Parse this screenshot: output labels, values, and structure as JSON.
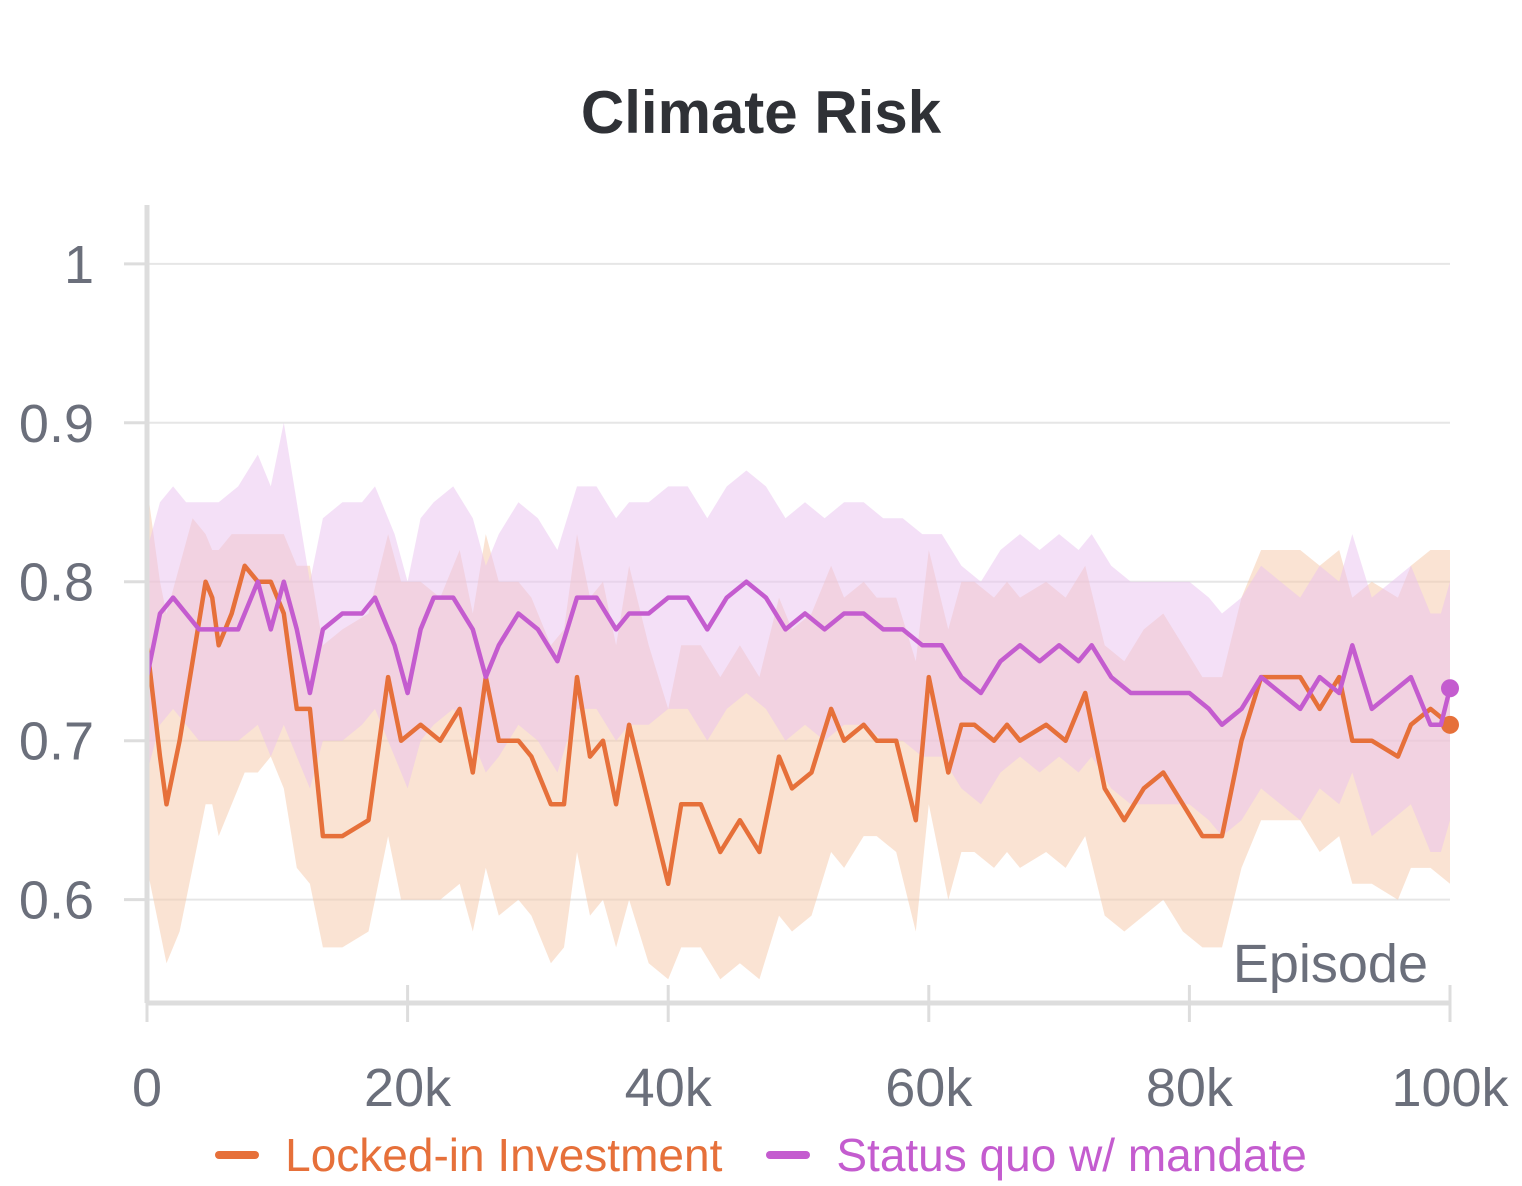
{
  "chart_data": {
    "type": "line",
    "title": "Climate Risk",
    "xlabel": "Episode",
    "ylabel": "",
    "xlim": [
      0,
      100000
    ],
    "ylim": [
      0.535,
      1.037
    ],
    "x_ticks": [
      0,
      20000,
      40000,
      60000,
      80000,
      100000
    ],
    "x_tick_labels": [
      "0",
      "20k",
      "40k",
      "60k",
      "80k",
      "100k"
    ],
    "y_ticks": [
      0.6,
      0.7,
      0.8,
      0.9,
      1
    ],
    "y_tick_labels": [
      "0.6",
      "0.7",
      "0.8",
      "0.9",
      "1"
    ],
    "grid": true,
    "legend_position": "bottom",
    "series": [
      {
        "name": "Locked-in Investment",
        "color": "#e6703a",
        "band_color": "#f6c7a8",
        "x": [
          0,
          1000,
          1500,
          2500,
          3500,
          4500,
          5000,
          5500,
          6500,
          7500,
          8500,
          9500,
          10500,
          11500,
          12500,
          13500,
          15000,
          17000,
          18500,
          19500,
          21000,
          22500,
          24000,
          25000,
          26000,
          27000,
          28500,
          29500,
          31000,
          32000,
          33000,
          34000,
          35000,
          36000,
          37000,
          38500,
          40000,
          41000,
          42500,
          44000,
          45500,
          47000,
          48500,
          49500,
          51000,
          52500,
          53500,
          55000,
          56000,
          57500,
          59000,
          60000,
          61500,
          62500,
          63500,
          65000,
          66000,
          67000,
          69000,
          70500,
          72000,
          73500,
          75000,
          76500,
          78000,
          79500,
          81000,
          82500,
          84000,
          85500,
          87000,
          88500,
          90000,
          91500,
          92500,
          94000,
          96000,
          97000,
          98500,
          100000
        ],
        "y": [
          0.76,
          0.69,
          0.66,
          0.7,
          0.75,
          0.8,
          0.79,
          0.76,
          0.78,
          0.81,
          0.8,
          0.8,
          0.78,
          0.72,
          0.72,
          0.64,
          0.64,
          0.65,
          0.74,
          0.7,
          0.71,
          0.7,
          0.72,
          0.68,
          0.74,
          0.7,
          0.7,
          0.69,
          0.66,
          0.66,
          0.74,
          0.69,
          0.7,
          0.66,
          0.71,
          0.66,
          0.61,
          0.66,
          0.66,
          0.63,
          0.65,
          0.63,
          0.69,
          0.67,
          0.68,
          0.72,
          0.7,
          0.71,
          0.7,
          0.7,
          0.65,
          0.74,
          0.68,
          0.71,
          0.71,
          0.7,
          0.71,
          0.7,
          0.71,
          0.7,
          0.73,
          0.67,
          0.65,
          0.67,
          0.68,
          0.66,
          0.64,
          0.64,
          0.7,
          0.74,
          0.74,
          0.74,
          0.72,
          0.74,
          0.7,
          0.7,
          0.69,
          0.71,
          0.72,
          0.71
        ],
        "y_low": [
          0.62,
          0.58,
          0.56,
          0.58,
          0.62,
          0.66,
          0.66,
          0.64,
          0.66,
          0.68,
          0.68,
          0.69,
          0.67,
          0.62,
          0.61,
          0.57,
          0.57,
          0.58,
          0.64,
          0.6,
          0.6,
          0.6,
          0.61,
          0.58,
          0.62,
          0.59,
          0.6,
          0.59,
          0.56,
          0.57,
          0.63,
          0.59,
          0.6,
          0.57,
          0.6,
          0.56,
          0.55,
          0.57,
          0.57,
          0.55,
          0.56,
          0.55,
          0.59,
          0.58,
          0.59,
          0.63,
          0.62,
          0.64,
          0.64,
          0.63,
          0.58,
          0.66,
          0.6,
          0.63,
          0.63,
          0.62,
          0.63,
          0.62,
          0.63,
          0.62,
          0.64,
          0.59,
          0.58,
          0.59,
          0.6,
          0.58,
          0.57,
          0.57,
          0.62,
          0.65,
          0.65,
          0.65,
          0.63,
          0.64,
          0.61,
          0.61,
          0.6,
          0.62,
          0.62,
          0.61
        ],
        "y_high": [
          0.86,
          0.8,
          0.78,
          0.81,
          0.84,
          0.83,
          0.82,
          0.82,
          0.83,
          0.83,
          0.83,
          0.83,
          0.83,
          0.81,
          0.81,
          0.76,
          0.77,
          0.78,
          0.83,
          0.8,
          0.8,
          0.79,
          0.82,
          0.78,
          0.83,
          0.8,
          0.8,
          0.79,
          0.76,
          0.77,
          0.83,
          0.79,
          0.8,
          0.76,
          0.81,
          0.76,
          0.72,
          0.76,
          0.76,
          0.74,
          0.76,
          0.74,
          0.79,
          0.77,
          0.78,
          0.81,
          0.79,
          0.8,
          0.79,
          0.79,
          0.75,
          0.82,
          0.77,
          0.8,
          0.8,
          0.79,
          0.8,
          0.79,
          0.8,
          0.79,
          0.81,
          0.76,
          0.75,
          0.77,
          0.78,
          0.76,
          0.74,
          0.74,
          0.79,
          0.82,
          0.82,
          0.82,
          0.81,
          0.82,
          0.79,
          0.8,
          0.79,
          0.81,
          0.82,
          0.82
        ]
      },
      {
        "name": "Status quo w/ mandate",
        "color": "#c45ccf",
        "band_color": "#e9c2ef",
        "x": [
          0,
          1000,
          2000,
          3000,
          4000,
          5500,
          7000,
          8500,
          9500,
          10500,
          11500,
          12500,
          13500,
          15000,
          16500,
          17500,
          19000,
          20000,
          21000,
          22000,
          23500,
          25000,
          26000,
          27000,
          28500,
          30000,
          31500,
          33000,
          34500,
          36000,
          37000,
          38500,
          40000,
          41500,
          43000,
          44500,
          46000,
          47500,
          49000,
          50500,
          52000,
          53500,
          55000,
          56500,
          58000,
          59500,
          61000,
          62500,
          64000,
          65500,
          67000,
          68500,
          70000,
          71500,
          72500,
          74000,
          75500,
          77000,
          78500,
          80000,
          81500,
          82500,
          84000,
          85500,
          87000,
          88500,
          90000,
          91500,
          92500,
          94000,
          95500,
          97000,
          98500,
          99300,
          100000
        ],
        "y": [
          0.74,
          0.78,
          0.79,
          0.78,
          0.77,
          0.77,
          0.77,
          0.8,
          0.77,
          0.8,
          0.77,
          0.73,
          0.77,
          0.78,
          0.78,
          0.79,
          0.76,
          0.73,
          0.77,
          0.79,
          0.79,
          0.77,
          0.74,
          0.76,
          0.78,
          0.77,
          0.75,
          0.79,
          0.79,
          0.77,
          0.78,
          0.78,
          0.79,
          0.79,
          0.77,
          0.79,
          0.8,
          0.79,
          0.77,
          0.78,
          0.77,
          0.78,
          0.78,
          0.77,
          0.77,
          0.76,
          0.76,
          0.74,
          0.73,
          0.75,
          0.76,
          0.75,
          0.76,
          0.75,
          0.76,
          0.74,
          0.73,
          0.73,
          0.73,
          0.73,
          0.72,
          0.71,
          0.72,
          0.74,
          0.73,
          0.72,
          0.74,
          0.73,
          0.76,
          0.72,
          0.73,
          0.74,
          0.71,
          0.71,
          0.733
        ],
        "y_low": [
          0.68,
          0.71,
          0.72,
          0.71,
          0.7,
          0.7,
          0.7,
          0.71,
          0.69,
          0.71,
          0.69,
          0.67,
          0.7,
          0.7,
          0.71,
          0.72,
          0.69,
          0.67,
          0.7,
          0.71,
          0.72,
          0.7,
          0.68,
          0.69,
          0.71,
          0.7,
          0.68,
          0.72,
          0.72,
          0.7,
          0.71,
          0.71,
          0.72,
          0.72,
          0.7,
          0.72,
          0.73,
          0.72,
          0.7,
          0.71,
          0.7,
          0.71,
          0.71,
          0.7,
          0.7,
          0.69,
          0.69,
          0.67,
          0.66,
          0.68,
          0.69,
          0.68,
          0.69,
          0.68,
          0.69,
          0.67,
          0.66,
          0.66,
          0.66,
          0.66,
          0.65,
          0.64,
          0.65,
          0.67,
          0.66,
          0.65,
          0.67,
          0.66,
          0.68,
          0.64,
          0.65,
          0.66,
          0.63,
          0.63,
          0.65
        ],
        "y_high": [
          0.82,
          0.85,
          0.86,
          0.85,
          0.85,
          0.85,
          0.86,
          0.88,
          0.86,
          0.9,
          0.85,
          0.8,
          0.84,
          0.85,
          0.85,
          0.86,
          0.83,
          0.8,
          0.84,
          0.85,
          0.86,
          0.84,
          0.81,
          0.83,
          0.85,
          0.84,
          0.82,
          0.86,
          0.86,
          0.84,
          0.85,
          0.85,
          0.86,
          0.86,
          0.84,
          0.86,
          0.87,
          0.86,
          0.84,
          0.85,
          0.84,
          0.85,
          0.85,
          0.84,
          0.84,
          0.83,
          0.83,
          0.81,
          0.8,
          0.82,
          0.83,
          0.82,
          0.83,
          0.82,
          0.83,
          0.81,
          0.8,
          0.8,
          0.8,
          0.8,
          0.79,
          0.78,
          0.79,
          0.81,
          0.8,
          0.79,
          0.81,
          0.8,
          0.83,
          0.79,
          0.8,
          0.81,
          0.78,
          0.78,
          0.8
        ]
      }
    ]
  },
  "colors": {
    "title": "#2f3136",
    "tick_label": "#6b6f7b",
    "grid": "#e6e6e6",
    "axis": "#dddddd"
  }
}
